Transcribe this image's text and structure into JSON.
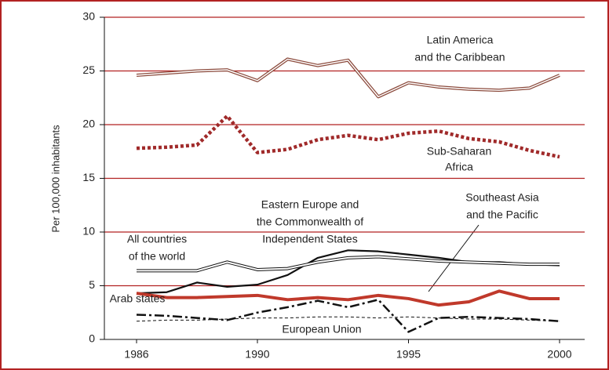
{
  "chart_data": {
    "type": "line",
    "y_label": "Per 100,000 inhabitants",
    "categories": [
      "1986",
      null,
      null,
      null,
      "1990",
      null,
      null,
      null,
      null,
      "1995",
      null,
      null,
      null,
      null,
      "2000"
    ],
    "ylim": [
      0,
      30
    ],
    "yticks": [
      0,
      5,
      10,
      15,
      20,
      25,
      30
    ],
    "grid": true,
    "grid_color": "#b22222",
    "series": [
      {
        "labels": [
          "Latin America",
          "and the Caribbean"
        ],
        "color": "#8b4a3c",
        "style": "double",
        "values": [
          24.6,
          24.8,
          25.0,
          25.1,
          24.1,
          26.1,
          25.5,
          26.0,
          22.6,
          23.9,
          23.5,
          23.3,
          23.2,
          23.4,
          24.6
        ]
      },
      {
        "labels": [
          "Sub-Saharan",
          "Africa"
        ],
        "color": "#a02a2a",
        "style": "dotted",
        "values": [
          17.8,
          17.9,
          18.1,
          20.8,
          17.4,
          17.7,
          18.6,
          19.0,
          18.6,
          19.2,
          19.4,
          18.7,
          18.4,
          17.6,
          17.0
        ]
      },
      {
        "labels": [
          "Eastern Europe and",
          "the Commonwealth of",
          "Independent States"
        ],
        "color": "#111111",
        "style": "solid",
        "values": [
          4.3,
          4.4,
          5.3,
          4.9,
          5.1,
          6.0,
          7.6,
          8.3,
          8.2,
          7.9,
          7.6,
          7.2,
          7.2,
          7.0,
          6.9
        ]
      },
      {
        "labels": [
          "All countries",
          "of the world"
        ],
        "color": "#111111",
        "style": "outline",
        "values": [
          6.4,
          6.4,
          6.4,
          7.2,
          6.5,
          6.6,
          7.2,
          7.6,
          7.7,
          7.5,
          7.3,
          7.2,
          7.1,
          7.0,
          7.0
        ]
      },
      {
        "labels": [
          "Southeast Asia",
          "and the Pacific"
        ],
        "color": "#c0392b",
        "style": "thick",
        "values": [
          4.3,
          3.9,
          3.9,
          4.0,
          4.1,
          3.7,
          3.9,
          3.7,
          4.1,
          3.8,
          3.2,
          3.5,
          4.5,
          3.8,
          3.8
        ]
      },
      {
        "labels": [
          "Arab states"
        ],
        "color": "#111111",
        "style": "dashdot",
        "values": [
          2.3,
          2.2,
          2.0,
          1.8,
          2.5,
          3.0,
          3.6,
          3.0,
          3.7,
          0.7,
          2.0,
          2.1,
          2.0,
          1.9,
          1.7
        ]
      },
      {
        "labels": [
          "European Union"
        ],
        "color": "#111111",
        "style": "dashed",
        "values": [
          1.7,
          1.8,
          1.8,
          1.9,
          2.0,
          2.0,
          2.1,
          2.1,
          2.0,
          2.1,
          2.0,
          1.9,
          1.9,
          1.8,
          1.7
        ]
      }
    ]
  }
}
